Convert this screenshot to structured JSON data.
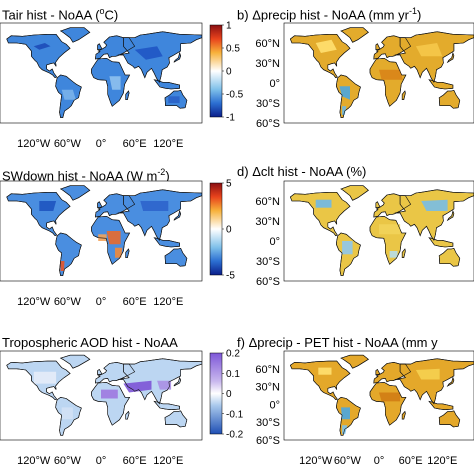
{
  "chart_data": [
    {
      "type": "heatmap",
      "panel_letter": "",
      "title_text": "Tair hist - NoAA (",
      "title_unit_base": "o",
      "title_unit_rest": "C)",
      "xticks": [
        "120°W",
        "60°W",
        "0°",
        "60°E",
        "120°E"
      ],
      "yticks": [],
      "colorbar": {
        "range": [
          -1,
          1
        ],
        "ticks": [
          "1",
          "0.5",
          "0",
          "-0.5",
          "-1"
        ],
        "colormap": "blue-white-red"
      },
      "dominant_color": "#2f6fd0"
    },
    {
      "type": "heatmap",
      "panel_letter": "b)",
      "title_text": "Δprecip hist - NoAA (mm yr",
      "title_sup": "-1",
      "title_end": ")",
      "xticks": [],
      "yticks": [
        "60°N",
        "30°N",
        "0°",
        "30°S",
        "60°S"
      ],
      "colorbar": null,
      "dominant_color": "#e0a521"
    },
    {
      "type": "heatmap",
      "panel_letter": "",
      "title_text": "SWdown hist - NoAA (W m",
      "title_sup": "-2",
      "title_end": ")",
      "xticks": [
        "120°W",
        "60°W",
        "0°",
        "60°E",
        "120°E"
      ],
      "yticks": [],
      "colorbar": {
        "range": [
          -5,
          5
        ],
        "ticks": [
          "5",
          "0",
          "-5"
        ],
        "colormap": "blue-white-red"
      },
      "dominant_color": "#3a7ed8"
    },
    {
      "type": "heatmap",
      "panel_letter": "d)",
      "title_text": "Δclt hist - NoAA (%)",
      "xticks": [],
      "yticks": [
        "60°N",
        "30°N",
        "0°",
        "30°S",
        "60°S"
      ],
      "colorbar": null,
      "dominant_color": "#e8c040"
    },
    {
      "type": "heatmap",
      "panel_letter": "",
      "title_text": "Tropospheric AOD hist - NoAA",
      "xticks": [
        "120°W",
        "60°W",
        "0°",
        "60°E",
        "120°E"
      ],
      "yticks": [],
      "colorbar": {
        "range": [
          -0.2,
          0.2
        ],
        "ticks": [
          "0.2",
          "0.1",
          "0",
          "-0.1",
          "-0.2"
        ],
        "colormap": "blue-white-purple"
      },
      "dominant_color": "#b8d4f0"
    },
    {
      "type": "heatmap",
      "panel_letter": "f)",
      "title_text": "Δprecip - PET hist - NoAA (mm y",
      "xticks": [
        "120°W",
        "60°W",
        "0°",
        "60°E",
        "120°E"
      ],
      "yticks": [
        "60°N",
        "30°N",
        "0°",
        "30°S",
        "60°S"
      ],
      "colorbar": null,
      "dominant_color": "#e0a521"
    }
  ]
}
